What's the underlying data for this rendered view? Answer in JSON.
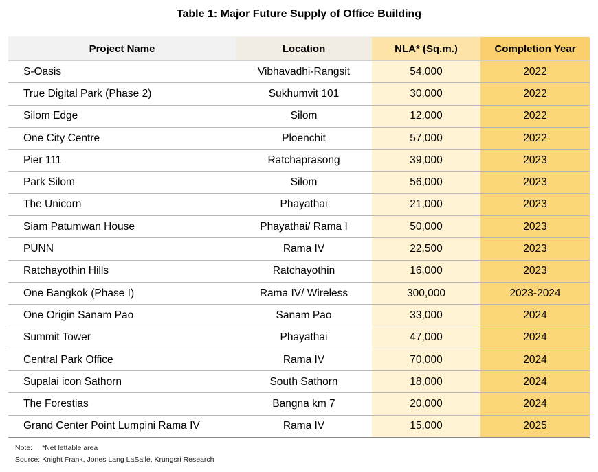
{
  "title": "Table 1: Major Future Supply of Office Building",
  "table": {
    "headers": [
      "Project Name",
      "Location",
      "NLA* (Sq.m.)",
      "Completion Year"
    ],
    "rows": [
      [
        "S-Oasis",
        "Vibhavadhi-Rangsit",
        "54,000",
        "2022"
      ],
      [
        "True Digital Park (Phase 2)",
        "Sukhumvit 101",
        "30,000",
        "2022"
      ],
      [
        "Silom Edge",
        "Silom",
        "12,000",
        "2022"
      ],
      [
        "One City Centre",
        "Ploenchit",
        "57,000",
        "2022"
      ],
      [
        "Pier 111",
        "Ratchaprasong",
        "39,000",
        "2023"
      ],
      [
        "Park Silom",
        "Silom",
        "56,000",
        "2023"
      ],
      [
        "The Unicorn",
        "Phayathai",
        "21,000",
        "2023"
      ],
      [
        "Siam Patumwan House",
        "Phayathai/ Rama I",
        "50,000",
        "2023"
      ],
      [
        "PUNN",
        "Rama IV",
        "22,500",
        "2023"
      ],
      [
        "Ratchayothin Hills",
        "Ratchayothin",
        "16,000",
        "2023"
      ],
      [
        "One Bangkok (Phase I)",
        "Rama IV/ Wireless",
        "300,000",
        "2023-2024"
      ],
      [
        "One Origin Sanam Pao",
        "Sanam Pao",
        "33,000",
        "2024"
      ],
      [
        "Summit Tower",
        "Phayathai",
        "47,000",
        "2024"
      ],
      [
        "Central Park Office",
        "Rama IV",
        "70,000",
        "2024"
      ],
      [
        "Supalai icon Sathorn",
        "South Sathorn",
        "18,000",
        "2024"
      ],
      [
        "The Forestias",
        "Bangna km 7",
        "20,000",
        "2024"
      ],
      [
        "Grand Center Point Lumpini Rama IV",
        "Rama IV",
        "15,000",
        "2025"
      ]
    ]
  },
  "notes": {
    "note_label": "Note:",
    "note_text": "*Net lettable area",
    "source": "Source: Knight Frank, Jones Lang LaSalle, Krungsri Research"
  },
  "colors": {
    "header_name_bg": "#f2f2f2",
    "header_location_bg": "#f2ede3",
    "header_nla_bg": "#fde4a6",
    "header_year_bg": "#fccf6d",
    "nla_column_bg": "#fff3d3",
    "year_column_bg": "#fcd779"
  }
}
